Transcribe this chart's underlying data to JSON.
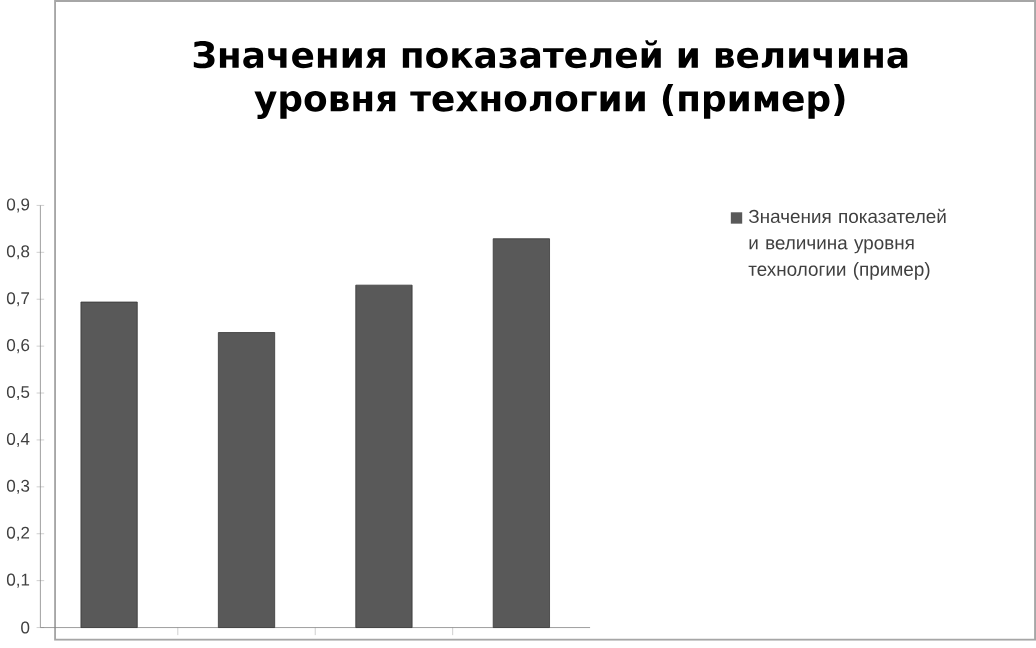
{
  "chart_data": {
    "type": "bar",
    "title": "Значения показателей и величина уровня технологии (пример)",
    "categories": [
      null,
      null,
      null,
      null
    ],
    "series": [
      {
        "name": "Значения показателей и величина уровня технологии (пример)",
        "color": "#595959",
        "values": [
          0.694,
          0.629,
          0.73,
          0.829
        ]
      }
    ],
    "ylim": [
      0,
      0.9
    ],
    "yticks": [
      {
        "value": 0,
        "label": "0"
      },
      {
        "value": 0.1,
        "label": "0,1"
      },
      {
        "value": 0.2,
        "label": "0,2"
      },
      {
        "value": 0.3,
        "label": "0,3"
      },
      {
        "value": 0.4,
        "label": "0,4"
      },
      {
        "value": 0.5,
        "label": "0,5"
      },
      {
        "value": 0.6,
        "label": "0,6"
      },
      {
        "value": 0.7,
        "label": "0,7"
      },
      {
        "value": 0.8,
        "label": "0,8"
      },
      {
        "value": 0.9,
        "label": "0,9"
      }
    ],
    "tick_labels": "y",
    "grid": false,
    "legend": "right"
  }
}
